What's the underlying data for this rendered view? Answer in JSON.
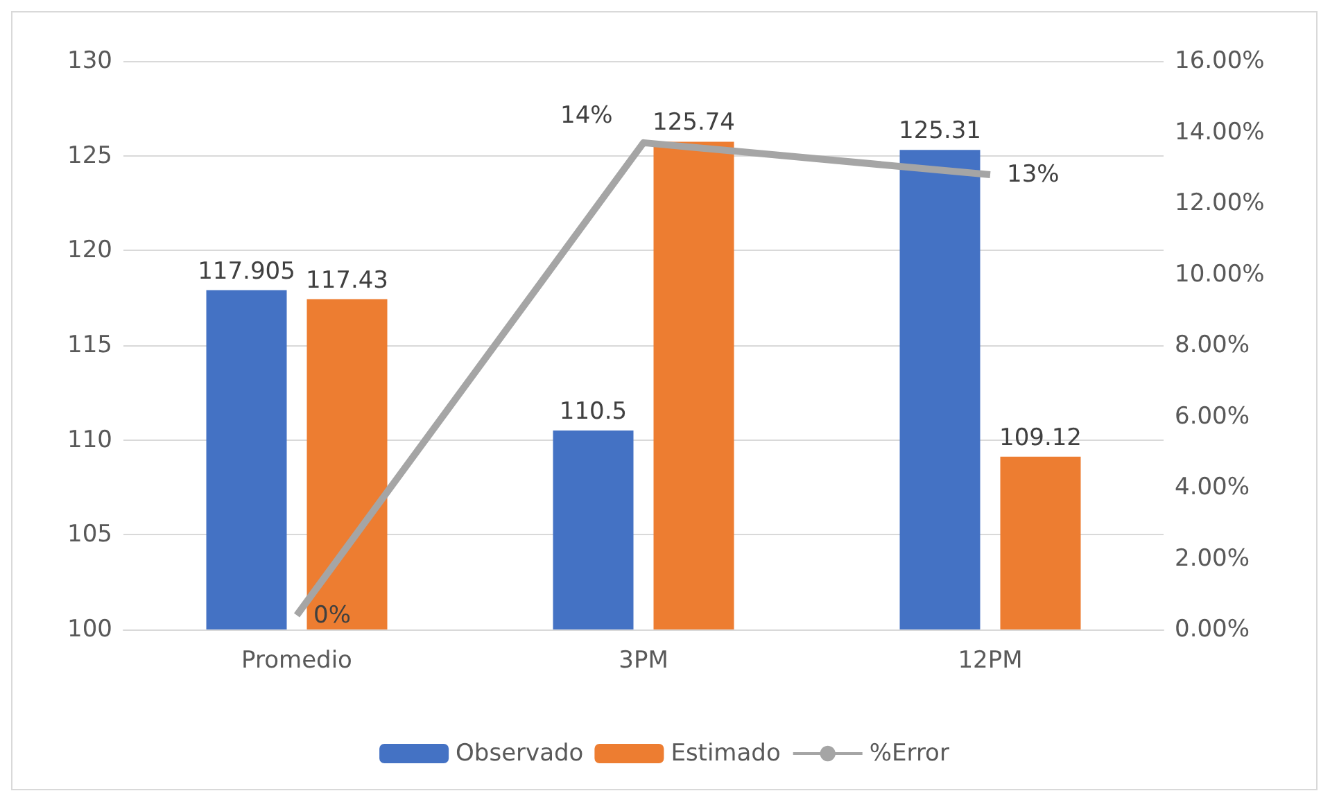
{
  "chart_data": {
    "type": "bar",
    "categories": [
      "Promedio",
      "3PM",
      "12PM"
    ],
    "series": [
      {
        "name": "Observado",
        "color": "#4472c4",
        "values": [
          117.905,
          110.5,
          125.31
        ],
        "value_labels": [
          "117.905",
          "110.5",
          "125.31"
        ]
      },
      {
        "name": "Estimado",
        "color": "#ed7d31",
        "values": [
          117.43,
          125.74,
          109.12
        ],
        "value_labels": [
          "117.43",
          "125.74",
          "109.12"
        ]
      },
      {
        "name": "%Error",
        "type": "line",
        "axis": "y2",
        "color": "#a5a5a5",
        "values": [
          0.4,
          13.7,
          12.8
        ],
        "value_labels": [
          "0%",
          "14%",
          "13%"
        ]
      }
    ],
    "ylim": [
      100,
      130
    ],
    "yticks": [
      100,
      105,
      110,
      115,
      120,
      125,
      130
    ],
    "y2lim": [
      0,
      16
    ],
    "y2ticks": [
      {
        "value": 0,
        "label": "0.00%"
      },
      {
        "value": 2,
        "label": "2.00%"
      },
      {
        "value": 4,
        "label": "4.00%"
      },
      {
        "value": 6,
        "label": "6.00%"
      },
      {
        "value": 8,
        "label": "8.00%"
      },
      {
        "value": 10,
        "label": "10.00%"
      },
      {
        "value": 12,
        "label": "12.00%"
      },
      {
        "value": 14,
        "label": "14.00%"
      },
      {
        "value": 16,
        "label": "16.00%"
      }
    ],
    "grid": "y",
    "legend": "bottom",
    "marker": "none"
  }
}
